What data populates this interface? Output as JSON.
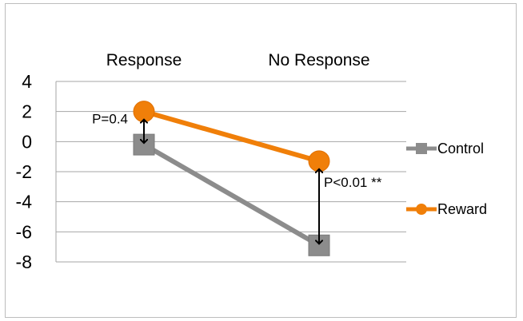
{
  "chart_data": {
    "type": "line",
    "categories": [
      "Response",
      "No Response"
    ],
    "series": [
      {
        "name": "Control",
        "values": [
          -0.2,
          -6.9
        ],
        "color": "#8c8c8c",
        "marker": "square"
      },
      {
        "name": "Reward",
        "values": [
          2.0,
          -1.3
        ],
        "color": "#f07f09",
        "marker": "circle"
      }
    ],
    "ylim": [
      -8,
      4
    ],
    "yticks": [
      4,
      2,
      0,
      -2,
      -4,
      -6,
      -8
    ],
    "grid": true,
    "legend_position": "right",
    "annotations": [
      {
        "text": "P=0.4",
        "category": "Response"
      },
      {
        "text": "P<0.01 **",
        "category": "No Response"
      }
    ]
  }
}
